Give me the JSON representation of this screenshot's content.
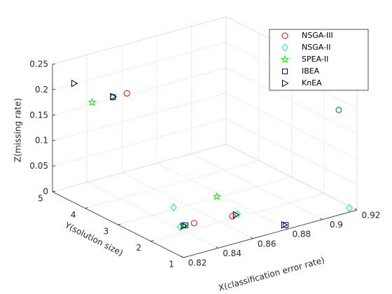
{
  "chart_data": {
    "type": "scatter3d",
    "xlabel": "X(classification error rate)",
    "ylabel": "Y(solution size)",
    "zlabel": "Z(missing rate)",
    "xlim": [
      0.82,
      0.92
    ],
    "xticks": [
      0.82,
      0.84,
      0.86,
      0.88,
      0.9,
      0.92
    ],
    "ylim": [
      1,
      5
    ],
    "yticks": [
      1,
      2,
      3,
      4,
      5
    ],
    "zlim": [
      0,
      0.25
    ],
    "zticks": [
      0,
      0.05,
      0.1,
      0.15,
      0.2,
      0.25
    ],
    "grid": true,
    "legend": "upper right",
    "series": [
      {
        "name": "NSGA-III",
        "color": "#ff0000",
        "marker": "circle",
        "x": [
          0.844,
          0.9095,
          0.845,
          0.867
        ],
        "y": [
          4,
          1,
          2,
          2
        ],
        "z": [
          0.203,
          0.206,
          0.012,
          0.005
        ]
      },
      {
        "name": "NSGA-II",
        "color": "#00e5ee",
        "marker": "diamond",
        "x": [
          0.836,
          0.9095,
          0.852,
          0.837,
          0.87,
          0.9156
        ],
        "y": [
          4,
          1,
          3,
          2,
          2,
          1
        ],
        "z": [
          0.203,
          0.206,
          0.004,
          0.012,
          0.006,
          0.008
        ]
      },
      {
        "name": "SPEA-II",
        "color": "#00ee00",
        "marker": "star",
        "x": [
          0.824,
          0.877,
          0.839
        ],
        "y": [
          4,
          3,
          2
        ],
        "z": [
          0.204,
          0.002,
          0.013
        ]
      },
      {
        "name": "IBEA",
        "color": "#0000cc",
        "marker": "square",
        "x": [
          0.836,
          0.84,
          0.879
        ],
        "y": [
          4,
          2,
          1
        ],
        "z": [
          0.203,
          0.0125,
          0.009
        ]
      },
      {
        "name": "KnEA",
        "color": "#000000",
        "marker": "triangle-right",
        "x": [
          0.8325,
          0.836,
          0.839,
          0.869,
          0.878
        ],
        "y": [
          5,
          4,
          2,
          2,
          1
        ],
        "z": [
          0.201,
          0.204,
          0.012,
          0.006,
          0.01
        ]
      }
    ]
  }
}
